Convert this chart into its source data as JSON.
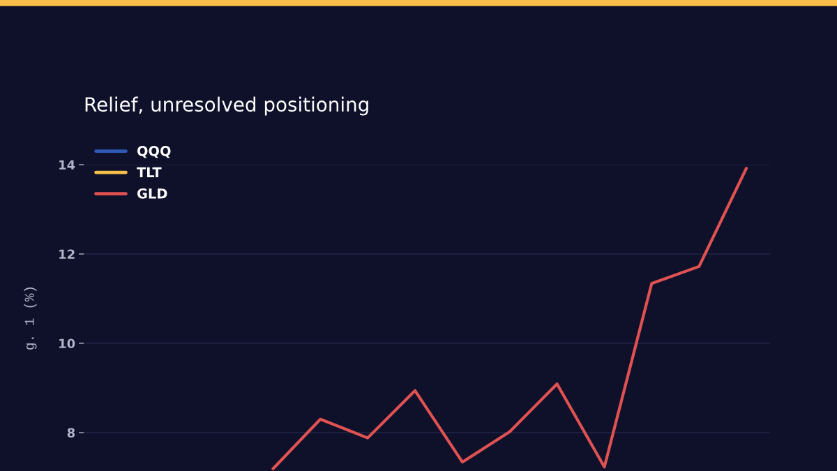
{
  "chart_data": {
    "type": "line",
    "title": "Relief, unresolved positioning",
    "ylabel": "g. 1 (%)",
    "categories": [
      null,
      null,
      null,
      null,
      null,
      null,
      null,
      null,
      null,
      null,
      null,
      null,
      null,
      null,
      null
    ],
    "series": [
      {
        "name": "QQQ",
        "color": "#2f5bb7",
        "values": [
          null,
          null,
          null,
          null,
          null,
          null,
          null,
          null,
          null,
          null,
          null,
          null,
          null,
          null,
          null
        ]
      },
      {
        "name": "TLT",
        "color": "#f5c04a",
        "values": [
          null,
          null,
          null,
          null,
          null,
          null,
          null,
          null,
          null,
          null,
          null,
          null,
          null,
          null,
          null
        ]
      },
      {
        "name": "GLD",
        "color": "#e05252",
        "values": [
          null,
          null,
          null,
          null,
          7.19,
          8.3,
          7.88,
          8.94,
          7.34,
          8.02,
          9.09,
          7.23,
          11.34,
          11.72,
          13.92
        ]
      }
    ],
    "ylim": [
      7.14,
      14
    ],
    "yticks": [
      8,
      10,
      12,
      14
    ],
    "grid": "y",
    "legend": "top left",
    "marker": "none",
    "line_style": "solid"
  }
}
